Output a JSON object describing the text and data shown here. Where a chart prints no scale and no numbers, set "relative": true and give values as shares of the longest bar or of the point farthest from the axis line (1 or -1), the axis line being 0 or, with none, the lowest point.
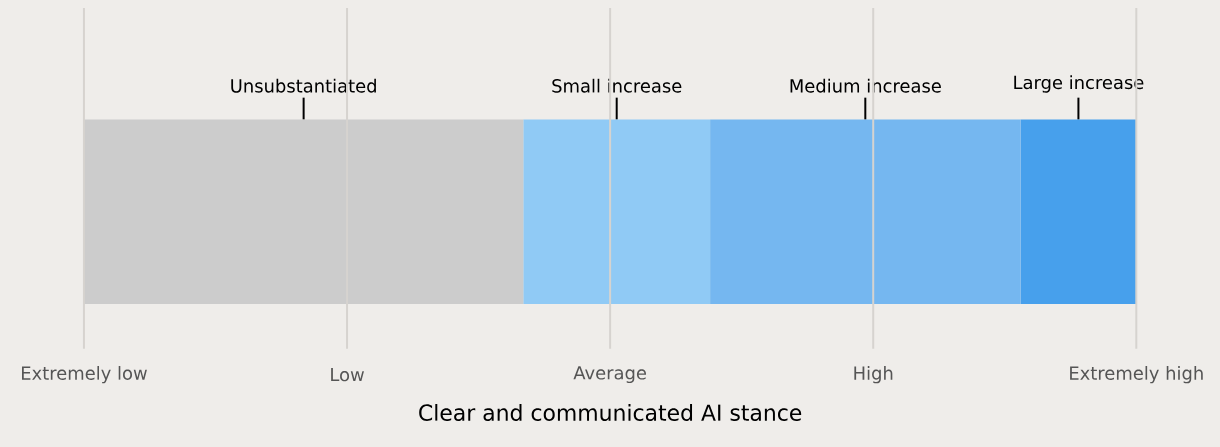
{
  "chart_data": {
    "type": "bar",
    "orientation": "horizontal",
    "stacked": true,
    "relative": true,
    "categories": [
      null
    ],
    "series": [
      {
        "name": "Unsubstantiated",
        "color": "#cccccc",
        "values": [
          0.4175
        ]
      },
      {
        "name": "Small increase",
        "color": "#90caf5",
        "values": [
          0.1775
        ]
      },
      {
        "name": "Medium increase",
        "color": "#75b7f0",
        "values": [
          0.295
        ]
      },
      {
        "name": "Large increase",
        "color": "#47a0ec",
        "values": [
          0.11
        ]
      }
    ],
    "annotations": [
      "Extremely low",
      "Low",
      "Average",
      "High",
      "Extremely high"
    ],
    "xlabel": "Clear and communicated AI stance",
    "grid": "x"
  }
}
